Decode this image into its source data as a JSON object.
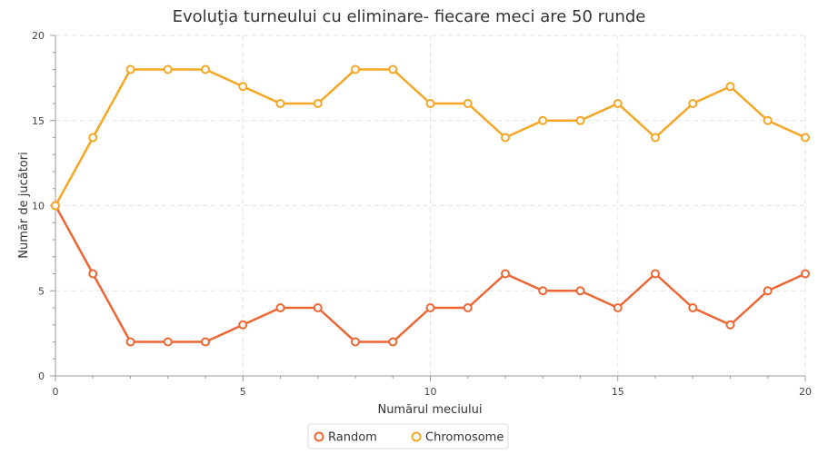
{
  "chart_data": {
    "type": "line",
    "title": "Evoluţia turneului cu eliminare- fiecare meci are 50 runde",
    "xlabel": "Numărul meciului",
    "ylabel": "Număr de jucători",
    "xlim": [
      0,
      20
    ],
    "ylim": [
      0,
      20
    ],
    "x_ticks": [
      0,
      5,
      10,
      15,
      20
    ],
    "y_ticks": [
      0,
      5,
      10,
      15,
      20
    ],
    "grid": true,
    "legend_position": "bottom-center",
    "x": [
      0,
      1,
      2,
      3,
      4,
      5,
      6,
      7,
      8,
      9,
      10,
      11,
      12,
      13,
      14,
      15,
      16,
      17,
      18,
      19,
      20
    ],
    "series": [
      {
        "name": "Random",
        "color": "#ee6633",
        "values": [
          10,
          6,
          2,
          2,
          2,
          3,
          4,
          4,
          2,
          2,
          4,
          4,
          6,
          5,
          5,
          4,
          6,
          4,
          3,
          5,
          6
        ]
      },
      {
        "name": "Chromosome",
        "color": "#f5a623",
        "values": [
          10,
          14,
          18,
          18,
          18,
          17,
          16,
          16,
          18,
          18,
          16,
          16,
          14,
          15,
          15,
          16,
          14,
          16,
          17,
          15,
          14
        ]
      }
    ]
  }
}
